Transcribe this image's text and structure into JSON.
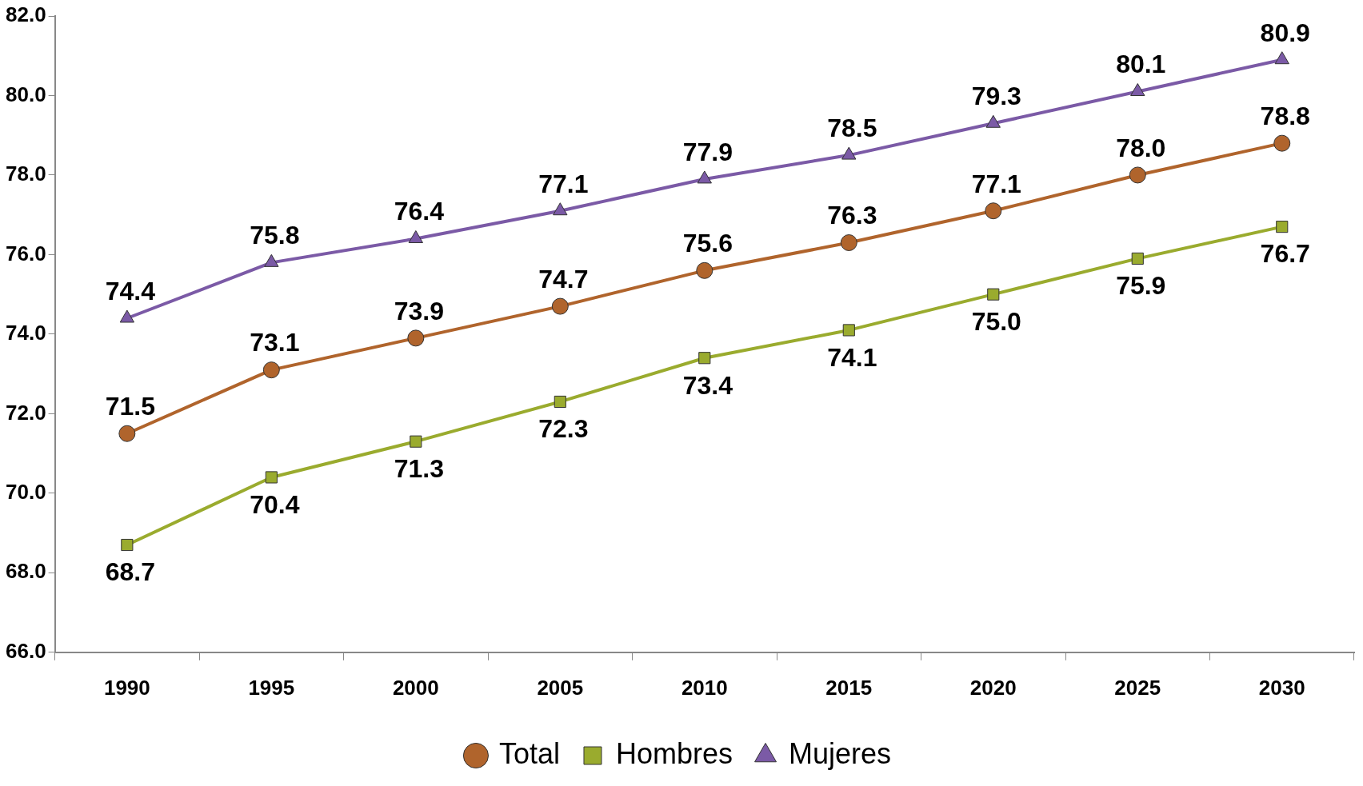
{
  "chart_data": {
    "type": "line",
    "categories": [
      "1990",
      "1995",
      "2000",
      "2005",
      "2010",
      "2015",
      "2020",
      "2025",
      "2030"
    ],
    "series": [
      {
        "name": "Total",
        "color": "#b0642c",
        "marker": "circle",
        "values": [
          71.5,
          73.1,
          73.9,
          74.7,
          75.6,
          76.3,
          77.1,
          78.0,
          78.8
        ],
        "value_labels": [
          "71.5",
          "73.1",
          "73.9",
          "74.7",
          "75.6",
          "76.3",
          "77.1",
          "78.0",
          "78.8"
        ]
      },
      {
        "name": "Hombres",
        "color": "#9aab2e",
        "marker": "square",
        "values": [
          68.7,
          70.4,
          71.3,
          72.3,
          73.4,
          74.1,
          75.0,
          75.9,
          76.7
        ],
        "value_labels": [
          "68.7",
          "70.4",
          "71.3",
          "72.3",
          "73.4",
          "74.1",
          "75.0",
          "75.9",
          "76.7"
        ]
      },
      {
        "name": "Mujeres",
        "color": "#7b5aa6",
        "marker": "triangle",
        "values": [
          74.4,
          75.8,
          76.4,
          77.1,
          77.9,
          78.5,
          79.3,
          80.1,
          80.9
        ],
        "value_labels": [
          "74.4",
          "75.8",
          "76.4",
          "77.1",
          "77.9",
          "78.5",
          "79.3",
          "80.1",
          "80.9"
        ]
      }
    ],
    "ylim": [
      66,
      82
    ],
    "yticks": [
      {
        "value": 66,
        "label": "66.0"
      },
      {
        "value": 68,
        "label": "68.0"
      },
      {
        "value": 70,
        "label": "70.0"
      },
      {
        "value": 72,
        "label": "72.0"
      },
      {
        "value": 74,
        "label": "74.0"
      },
      {
        "value": 76,
        "label": "76.0"
      },
      {
        "value": 78,
        "label": "78.0"
      },
      {
        "value": 80,
        "label": "80.0"
      },
      {
        "value": 82,
        "label": "82.0"
      }
    ],
    "grid": false,
    "legend": "bottom",
    "line_style": "solid"
  }
}
